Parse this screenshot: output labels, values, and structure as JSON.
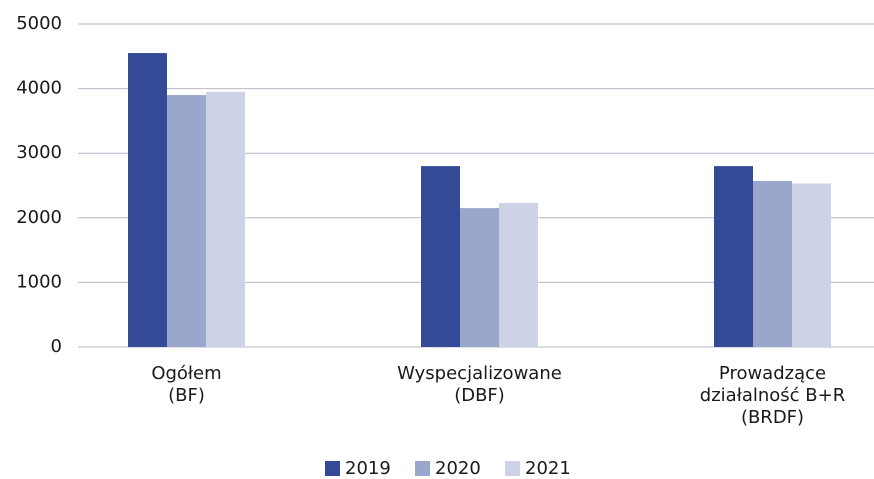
{
  "chart_data": {
    "type": "bar",
    "categories": [
      "Ogółem\n(BF)",
      "Wyspecjalizowane\n(DBF)",
      "Prowadzące\ndziałalność B+R\n(BRDF)"
    ],
    "series": [
      {
        "name": "2019",
        "color": "#354a96",
        "values": [
          4550,
          2800,
          2800
        ]
      },
      {
        "name": "2020",
        "color": "#9aa6cc",
        "values": [
          3900,
          2150,
          2570
        ]
      },
      {
        "name": "2021",
        "color": "#cdd2e6",
        "values": [
          3950,
          2230,
          2530
        ]
      }
    ],
    "ylim": [
      0,
      5000
    ],
    "yticks": [
      0,
      1000,
      2000,
      3000,
      4000,
      5000
    ],
    "grid": true,
    "legend": "bottom"
  }
}
